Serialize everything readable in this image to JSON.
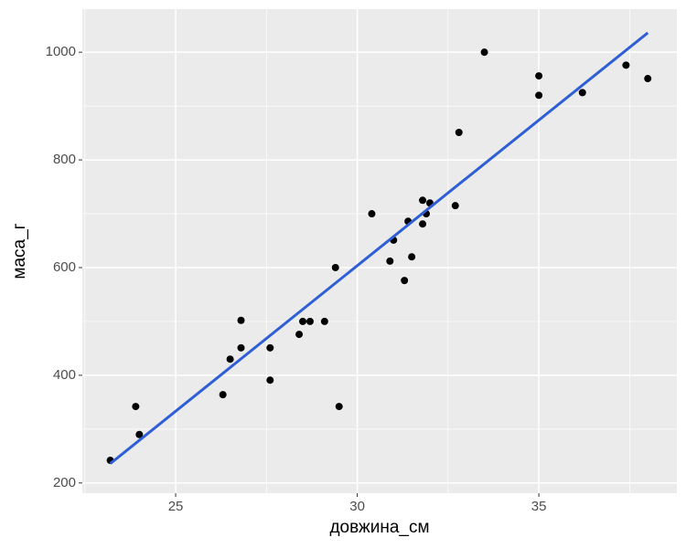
{
  "chart_data": {
    "type": "scatter",
    "x_label": "довжина_см",
    "y_label": "маса_г",
    "x": [
      23.2,
      23.9,
      24.0,
      26.3,
      26.5,
      26.8,
      26.8,
      27.6,
      27.6,
      28.4,
      28.5,
      28.7,
      29.1,
      29.4,
      29.5,
      30.4,
      30.9,
      31.0,
      31.3,
      31.4,
      31.5,
      31.8,
      31.8,
      31.9,
      32.0,
      32.7,
      32.8,
      33.5,
      35.0,
      35.0,
      36.2,
      37.4,
      38.0
    ],
    "values": [
      242,
      342,
      290,
      364,
      430,
      502,
      451,
      451,
      391,
      476,
      500,
      500,
      500,
      600,
      342,
      700,
      612,
      651,
      576,
      686,
      620,
      681,
      725,
      700,
      720,
      715,
      851,
      1000,
      956,
      920,
      925,
      976,
      951
    ],
    "color": "#000000",
    "fit_line": {
      "x": [
        23.2,
        38.0
      ],
      "values": [
        236,
        1036
      ],
      "color": "#2f5fd6"
    },
    "xlim": [
      22.43,
      38.8
    ],
    "ylim": [
      181,
      1080
    ],
    "xticks": [
      25,
      30,
      35
    ],
    "yticks": [
      200,
      400,
      600,
      800,
      1000
    ],
    "x_minor": [
      22.5,
      27.5,
      32.5,
      37.5
    ],
    "y_minor": [
      300,
      500,
      700,
      900
    ],
    "grid": true
  }
}
